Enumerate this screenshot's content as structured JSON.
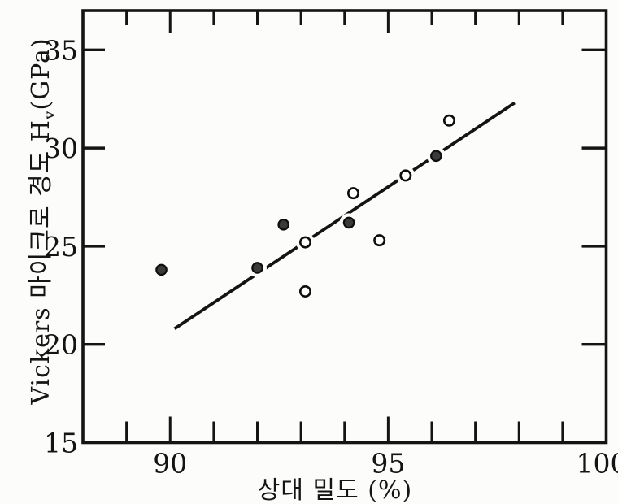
{
  "figure": {
    "background": "#fcfcfa",
    "ink": "#141414"
  },
  "chart_data": {
    "type": "scatter",
    "title": "",
    "xlabel": "상대 밀도 (%)",
    "ylabel_prefix": "Vickers 마이크로 경도 H",
    "ylabel_sub": "v",
    "ylabel_suffix": "(GPa)",
    "xlim": [
      88,
      100
    ],
    "ylim": [
      15,
      37
    ],
    "grid": false,
    "legend_position": "none",
    "x_minor_ticks": [
      89,
      91,
      92,
      93,
      94,
      96,
      97,
      98,
      99
    ],
    "x_major_ticks": [
      90,
      95
    ],
    "y_major_ticks": [
      20,
      25,
      30,
      35
    ],
    "x_tick_labels": [
      {
        "value": 90,
        "label": "90"
      },
      {
        "value": 95,
        "label": "95"
      },
      {
        "value": 100,
        "label": "100"
      }
    ],
    "y_tick_labels": [
      {
        "value": 15,
        "label": "15"
      },
      {
        "value": 20,
        "label": "20"
      },
      {
        "value": 25,
        "label": "25"
      },
      {
        "value": 30,
        "label": "30"
      },
      {
        "value": 35,
        "label": "35"
      }
    ],
    "series": [
      {
        "name": "filled-circles",
        "marker": "filled-circle",
        "marker_color": "#3a3a3a",
        "points": [
          [
            89.8,
            23.8
          ],
          [
            92.0,
            23.9
          ],
          [
            92.6,
            26.1
          ],
          [
            94.1,
            26.2
          ],
          [
            96.1,
            29.6
          ]
        ]
      },
      {
        "name": "open-circles",
        "marker": "open-circle",
        "marker_color": "#ffffff",
        "points": [
          [
            93.1,
            25.2
          ],
          [
            93.1,
            22.7
          ],
          [
            94.2,
            27.7
          ],
          [
            94.8,
            25.3
          ],
          [
            95.4,
            28.6
          ],
          [
            96.4,
            31.4
          ]
        ]
      }
    ],
    "trendline": {
      "x1": 90.1,
      "y1": 20.8,
      "x2": 97.9,
      "y2": 32.3
    }
  }
}
